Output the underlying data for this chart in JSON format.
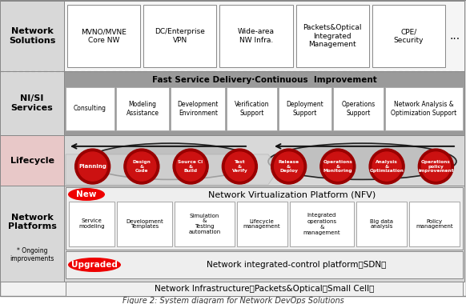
{
  "title": "Figure 2: System diagram for Network DevOps Solutions",
  "bg_color": "#ffffff",
  "network_solutions_boxes": [
    "MVNO/MVNE\nCore NW",
    "DC/Enterprise\nVPN",
    "Wide-area\nNW Infra.",
    "Packets&Optical\nIntegrated\nManagement",
    "CPE/\nSecurity"
  ],
  "nisi_header": "Fast Service Delivery·Continuous  Improvement",
  "nisi_boxes": [
    "Consulting",
    "Modeling\nAssistance",
    "Development\nEnvironment",
    "Verification\nSupport",
    "Deployment\nSupport",
    "Operations\nSupport",
    "Network Analysis &\nOptimization Support"
  ],
  "lifecycle_circles": [
    "Planning",
    "Design\n&\nCode",
    "Source CI\n&\nBuild",
    "Test\n&\nVerify",
    "Release\n&\nDeploy",
    "Operations\n&\nMonitoring",
    "Analysis\n&\nOptimization",
    "Operations\npolicy\nimprovement"
  ],
  "nvf_label": "Network Virtualization Platform (NFV)",
  "platform_boxes": [
    "Service\nmodeling",
    "Development\nTemplates",
    "Simulation\n&\nTesting\nautomation",
    "Lifecycle\nmanagement",
    "Integrated\noperations\n&\nmanagement",
    "Big data\nanalysis",
    "Policy\nmanagement"
  ],
  "sdn_label": "Network integrated-control platform（SDN）",
  "infra_label": "Network Infrastructure（Packets&Optical／Small Cell）",
  "red_badge_color": "#ee0000",
  "circle_outer_color": "#990000",
  "circle_inner_color": "#cc1111",
  "new_label": "New",
  "upgraded_label": "Upgraded",
  "lifecycle_bg": "#b0b0b0",
  "nisi_bg": "#909090",
  "row1_left_bg": "#d8d8d8",
  "row2_left_bg": "#d8d8d8",
  "row3_left_bg": "#e8c8c8",
  "row4_left_bg": "#d8d8d8"
}
